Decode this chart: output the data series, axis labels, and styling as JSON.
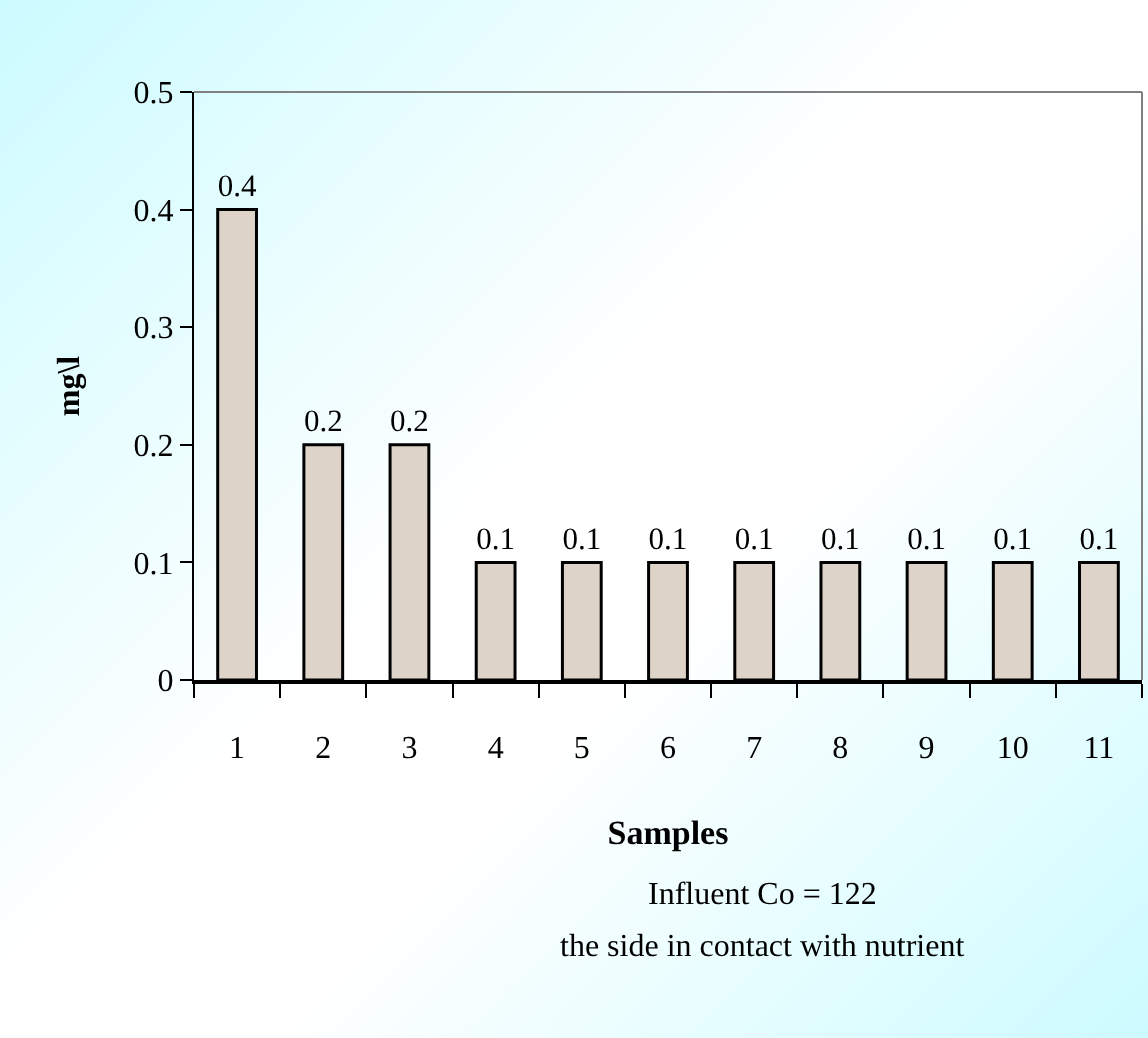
{
  "chart_data": {
    "type": "bar",
    "xlabel": "Samples",
    "ylabel": "mg\\l",
    "categories": [
      "1",
      "2",
      "3",
      "4",
      "5",
      "6",
      "7",
      "8",
      "9",
      "10",
      "11"
    ],
    "values": [
      0.4,
      0.2,
      0.2,
      0.1,
      0.1,
      0.1,
      0.1,
      0.1,
      0.1,
      0.1,
      0.1
    ],
    "color": "#ddd3c8",
    "ylim": [
      0,
      0.5
    ],
    "yticks": [
      0,
      0.1,
      0.2,
      0.3,
      0.4,
      0.5
    ],
    "data_labels": true,
    "grid": false,
    "legend": false,
    "annotations": [
      "Influent Co = 122",
      "the side in contact with nutrient"
    ]
  }
}
